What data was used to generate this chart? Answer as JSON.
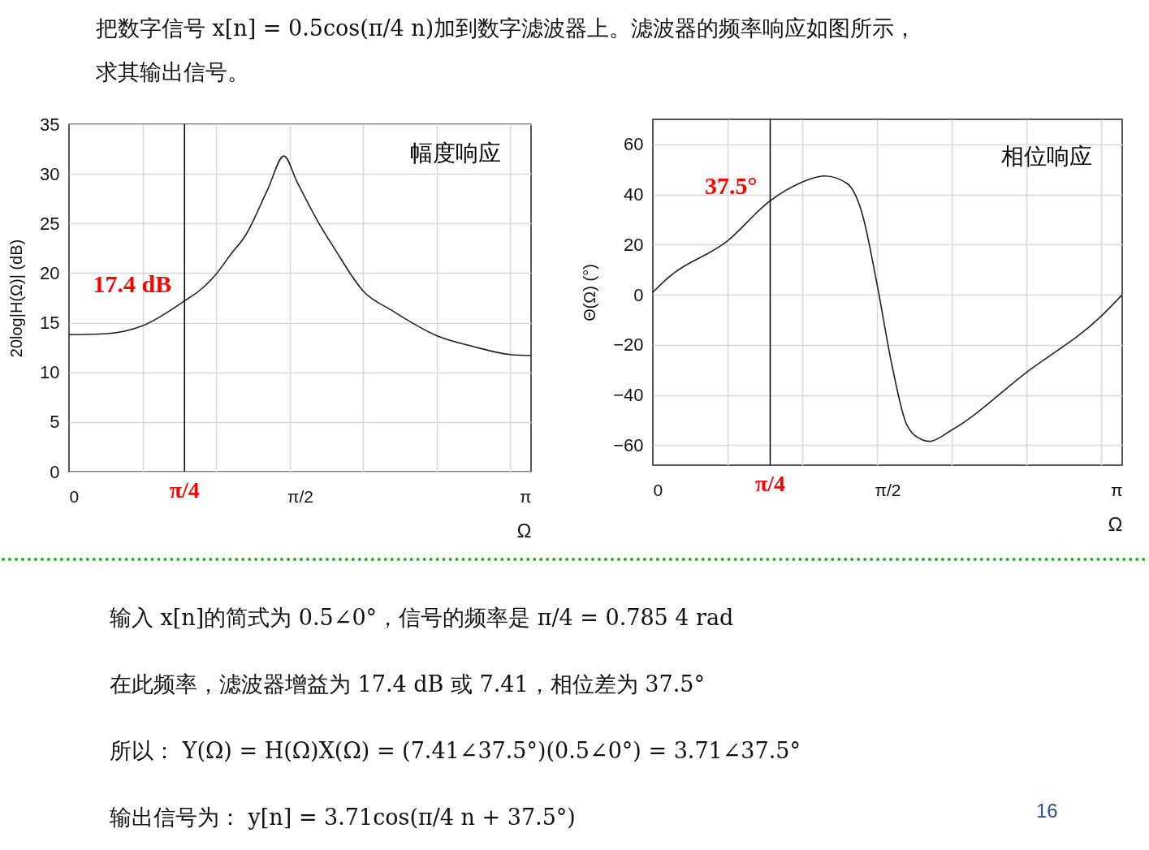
{
  "chart_data": [
    {
      "type": "line",
      "title": "幅度响应",
      "xlabel": "Ω",
      "ylabel": "20log|H(Ω)| (dB)",
      "x": [
        0,
        0.25,
        0.5,
        0.785,
        0.9,
        1.0,
        1.1,
        1.2,
        1.35,
        1.461,
        1.55,
        1.7,
        1.8,
        2.0,
        2.2,
        2.5,
        2.75,
        3.0,
        3.1416
      ],
      "series": [
        {
          "color": "#222222",
          "values": [
            13.8,
            13.9,
            14.7,
            17.2,
            18.4,
            19.9,
            21.9,
            23.8,
            28.4,
            31.8,
            29.2,
            25.0,
            22.6,
            18.2,
            16.2,
            13.7,
            12.6,
            11.8,
            11.7
          ]
        }
      ],
      "xlim": [
        0,
        3.1416
      ],
      "xticks": [
        {
          "value": 0,
          "label": "0"
        },
        {
          "value": 0.5,
          "label": null
        },
        {
          "value": 1,
          "label": null
        },
        {
          "value": 1.5,
          "label": null
        },
        {
          "value": 1.5708,
          "label": "π/2"
        },
        {
          "value": 2,
          "label": null
        },
        {
          "value": 2.5,
          "label": null
        },
        {
          "value": 3,
          "label": null
        },
        {
          "value": 3.1416,
          "label": "π"
        }
      ],
      "ylim": [
        0,
        35
      ],
      "yticks": [
        0,
        5,
        10,
        15,
        20,
        25,
        30,
        35
      ],
      "grid": true,
      "ref_lines": [
        {
          "axis": "x",
          "value": 0.7854,
          "label": "π/4",
          "color": "#000000"
        }
      ],
      "annotations": [
        {
          "text": "17.4 dB",
          "x": 0.7854,
          "y": 17.4
        },
        "把数字信号 x[n] = 0.5cos(π/4 n)加到数字滤波器上。滤波器的频率响应如图所示，",
        "求其输出信号。"
      ]
    },
    {
      "type": "line",
      "title": "相位响应",
      "xlabel": "Ω",
      "ylabel": "Θ(Ω) (°)",
      "x": [
        0,
        0.1,
        0.5,
        0.785,
        1.0,
        1.1,
        1.15,
        1.3,
        1.4,
        1.5,
        1.6,
        1.7,
        1.8,
        1.85,
        2.0,
        2.5,
        3.0,
        3.1416
      ],
      "series": [
        {
          "color": "#222222",
          "values": [
            1,
            6.7,
            21.5,
            37.5,
            45,
            47,
            47.4,
            44.4,
            32.6,
            4.4,
            -28,
            -51.9,
            -57.8,
            -58.5,
            -54,
            -31,
            -8.6,
            0
          ]
        }
      ],
      "xlim": [
        0,
        3.1416
      ],
      "xticks": [
        {
          "value": 0,
          "label": "0"
        },
        {
          "value": 0.5,
          "label": null
        },
        {
          "value": 1,
          "label": null
        },
        {
          "value": 1.5,
          "label": null
        },
        {
          "value": 1.5708,
          "label": "π/2"
        },
        {
          "value": 2,
          "label": null
        },
        {
          "value": 2.5,
          "label": null
        },
        {
          "value": 3,
          "label": null
        },
        {
          "value": 3.1416,
          "label": "π"
        }
      ],
      "ylim": [
        -68,
        70
      ],
      "yticks": [
        {
          "value": -60,
          "label": "−60"
        },
        {
          "value": -40,
          "label": "−40"
        },
        {
          "value": -20,
          "label": "−20"
        },
        0,
        20,
        40,
        60
      ],
      "grid": true,
      "ref_lines": [
        {
          "axis": "x",
          "value": 0.7854,
          "label": "π/4",
          "color": "#000000"
        }
      ],
      "annotations": [
        {
          "text": "37.5°",
          "x": 0.7854,
          "y": 37.5
        },
        "输入 x[n]的简式为 0.5∠0°，信号的频率是 π/4 = 0.785 4 rad",
        "在此频率，滤波器增益为 17.4 dB 或 7.41，相位差为 37.5°",
        "所以： Y(Ω) = H(Ω)X(Ω) = (7.41∠37.5°)(0.5∠0°) = 3.71∠37.5°",
        "输出信号为： y[n] = 3.71cos(π/4 n + 37.5°)",
        "16"
      ]
    }
  ]
}
